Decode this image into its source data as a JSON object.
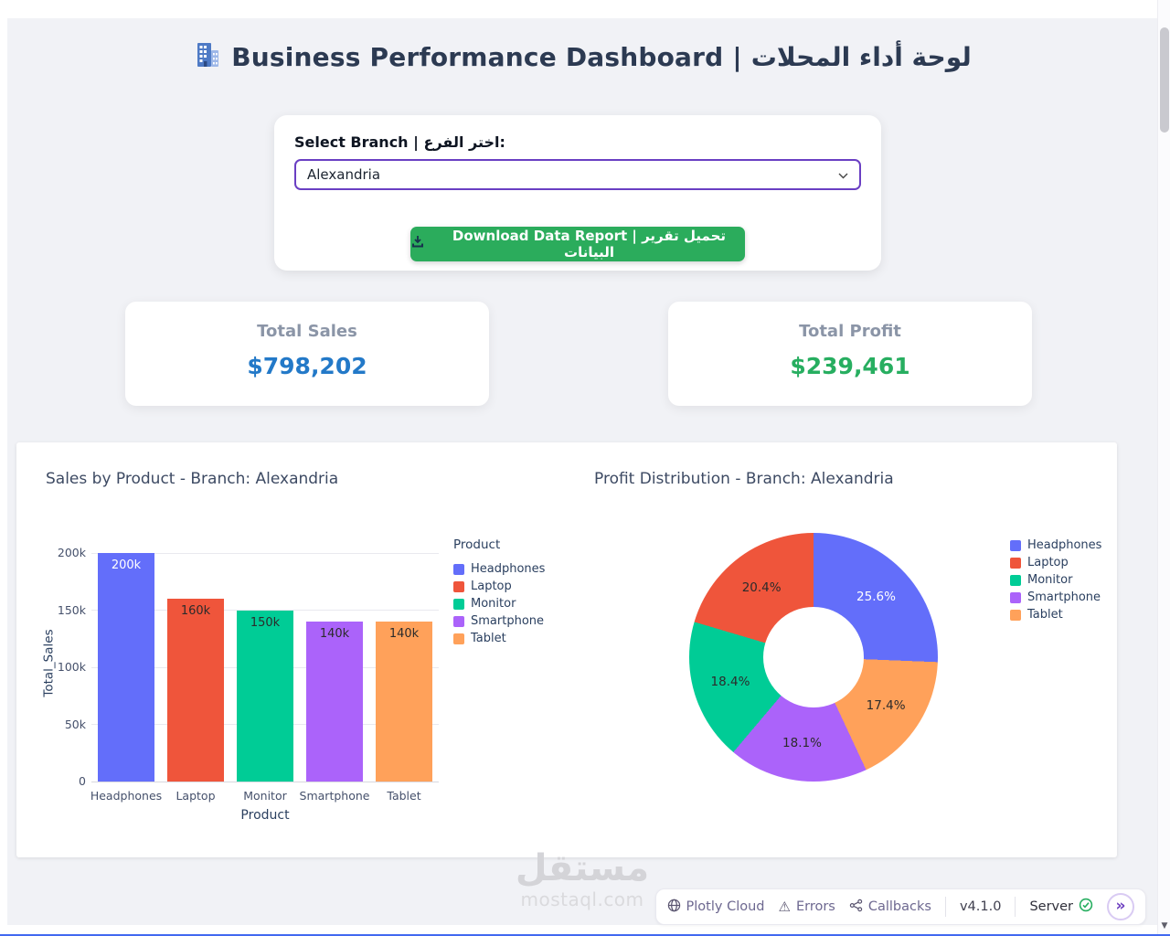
{
  "page": {
    "title": "Business Performance Dashboard | لوحة أداء المحلات"
  },
  "icons": {
    "header": "office-building-icon",
    "download_button": "download-tray-icon",
    "select": "chevron-down-icon",
    "footer": [
      "globe-icon",
      "warning-icon",
      "callback-graph-icon",
      "check-circle-icon",
      "double-chevron-icon"
    ]
  },
  "branch_panel": {
    "select_label": "Select Branch | اختر الفرع:",
    "select_value": "Alexandria",
    "download_label": "Download Data Report | تحميل تقرير البيانات"
  },
  "stats": [
    {
      "label": "Total Sales",
      "value": "$798,202",
      "color": "#2379C8"
    },
    {
      "label": "Total Profit",
      "value": "$239,461",
      "color": "#27AE60"
    }
  ],
  "chart_data": [
    {
      "type": "bar",
      "title": "Sales by Product - Branch: Alexandria",
      "xlabel": "Product",
      "ylabel": "Total_Sales",
      "categories": [
        "Headphones",
        "Laptop",
        "Monitor",
        "Smartphone",
        "Tablet"
      ],
      "values": [
        200000,
        160000,
        150000,
        140000,
        140000
      ],
      "value_labels": [
        "200k",
        "160k",
        "150k",
        "140k",
        "140k"
      ],
      "colors": [
        "#636EFA",
        "#EF553B",
        "#00CC96",
        "#AB63FA",
        "#FFA15A"
      ],
      "ylim": [
        0,
        208000
      ],
      "yticks": [
        {
          "label": "0",
          "value": 0
        },
        {
          "label": "50k",
          "value": 50000
        },
        {
          "label": "100k",
          "value": 100000
        },
        {
          "label": "150k",
          "value": 150000
        },
        {
          "label": "200k",
          "value": 200000
        }
      ],
      "grid": true,
      "legend_title": "Product",
      "legend": [
        "Headphones",
        "Laptop",
        "Monitor",
        "Smartphone",
        "Tablet"
      ],
      "legend_position": "right"
    },
    {
      "type": "pie",
      "title": "Profit Distribution - Branch: Alexandria",
      "labels": [
        "Headphones",
        "Laptop",
        "Monitor",
        "Smartphone",
        "Tablet"
      ],
      "values": [
        25.6,
        20.4,
        18.4,
        18.1,
        17.4
      ],
      "unit": "%",
      "colors": [
        "#636EFA",
        "#EF553B",
        "#00CC96",
        "#AB63FA",
        "#FFA15A"
      ],
      "hole": 0.4,
      "sort": "descending",
      "direction": "counterclockwise",
      "legend": [
        "Headphones",
        "Laptop",
        "Monitor",
        "Smartphone",
        "Tablet"
      ],
      "legend_position": "right"
    }
  ],
  "footer": {
    "plotly_cloud": "Plotly Cloud",
    "errors": "Errors",
    "callbacks": "Callbacks",
    "version": "v4.1.0",
    "server": "Server"
  },
  "watermark": {
    "title": "مستقل",
    "subtitle": "mostaql.com"
  },
  "colors": {
    "select_border": "#6a3fc3",
    "button_green": "#2bac5c",
    "series": [
      "#636EFA",
      "#EF553B",
      "#00CC96",
      "#AB63FA",
      "#FFA15A"
    ]
  }
}
